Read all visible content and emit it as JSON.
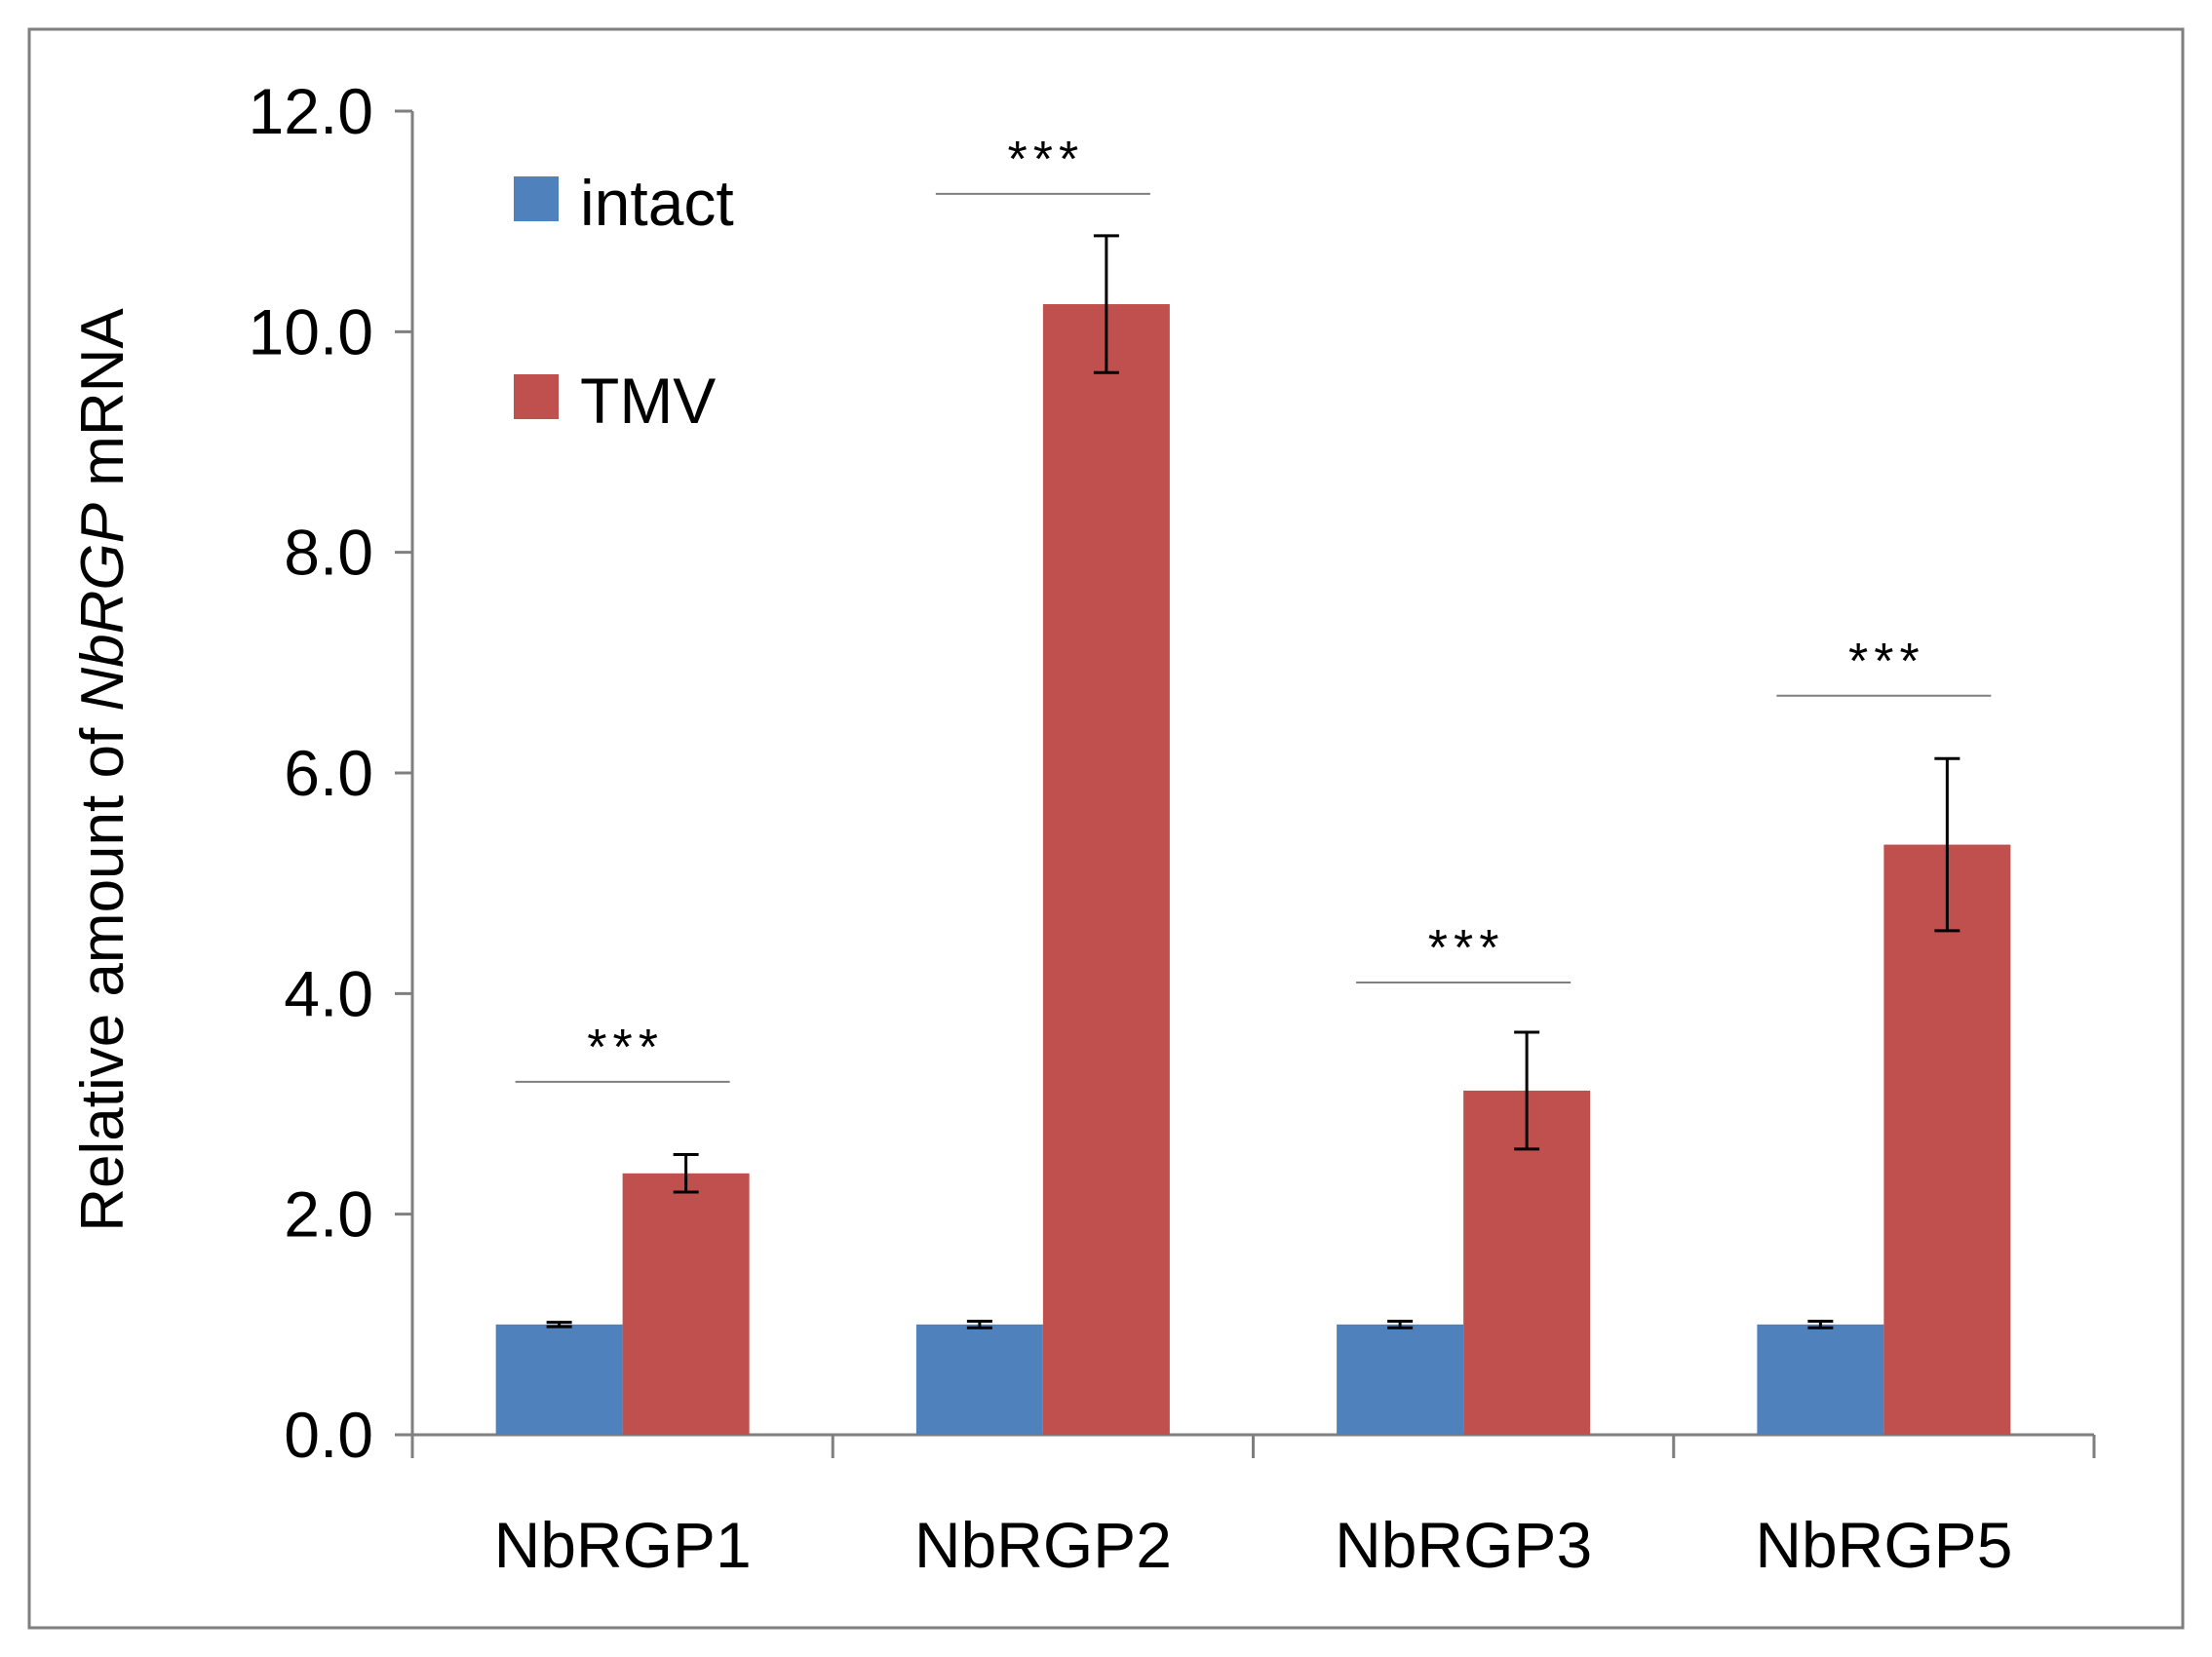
{
  "chart_data": {
    "type": "bar",
    "title": "",
    "xlabel": "",
    "ylabel": {
      "prefix": "Relative amount of ",
      "italic": "NbRGP",
      "suffix": " mRNA"
    },
    "ylim": [
      0,
      12
    ],
    "yticks": [
      "0.0",
      "2.0",
      "4.0",
      "6.0",
      "8.0",
      "10.0",
      "12.0"
    ],
    "ytick_values": [
      0,
      2,
      4,
      6,
      8,
      10,
      12
    ],
    "grid": false,
    "legend_position": "top-left",
    "categories": [
      "NbRGP1",
      "NbRGP2",
      "NbRGP3",
      "NbRGP5"
    ],
    "series": [
      {
        "name": "intact",
        "color": "#4f81bd",
        "values": [
          1.0,
          1.0,
          1.0,
          1.0
        ],
        "errors": [
          0.02,
          0.03,
          0.03,
          0.03
        ]
      },
      {
        "name": "TMV",
        "color": "#c0504d",
        "values": [
          2.37,
          10.25,
          3.12,
          5.35
        ],
        "errors": [
          0.17,
          0.62,
          0.53,
          0.78
        ]
      }
    ],
    "significance": [
      {
        "category": "NbRGP1",
        "label": "***",
        "line_value": 3.2
      },
      {
        "category": "NbRGP2",
        "label": "***",
        "line_value": 11.25
      },
      {
        "category": "NbRGP3",
        "label": "***",
        "line_value": 4.1
      },
      {
        "category": "NbRGP5",
        "label": "***",
        "line_value": 6.7
      }
    ]
  }
}
